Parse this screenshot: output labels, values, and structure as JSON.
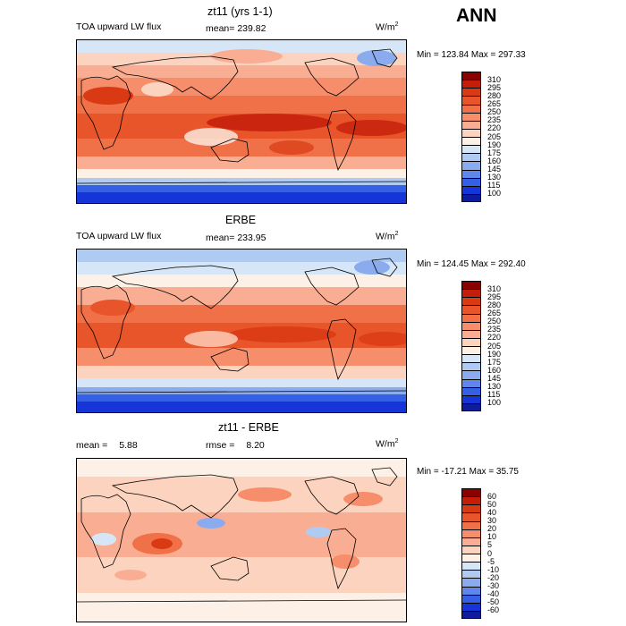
{
  "season": "ANN",
  "unit_base": "W/m",
  "unit_exp": "2",
  "panels": [
    {
      "title": "zt11 (yrs 1-1)",
      "left_label": "TOA upward LW flux",
      "stat_label": "mean=",
      "stat_value": "239.82",
      "extra_label": "",
      "extra_value": "",
      "minmax": "Min = 123.84 Max = 297.33",
      "levels": [
        "310",
        "295",
        "280",
        "265",
        "250",
        "235",
        "220",
        "205",
        "190",
        "175",
        "160",
        "145",
        "130",
        "115",
        "100"
      ],
      "colors": [
        "#8b0000",
        "#c41e0b",
        "#d93a14",
        "#e8552a",
        "#f07048",
        "#f68e6c",
        "#f9ae93",
        "#fcd3bf",
        "#fdf0e6",
        "#d7e6f7",
        "#b0cbf2",
        "#8aabee",
        "#5f86ea",
        "#3560e6",
        "#1535d8",
        "#0d1b9c"
      ]
    },
    {
      "title": "ERBE",
      "left_label": "TOA upward LW flux",
      "stat_label": "mean=",
      "stat_value": "233.95",
      "extra_label": "",
      "extra_value": "",
      "minmax": "Min = 124.45 Max = 292.40",
      "levels": [
        "310",
        "295",
        "280",
        "265",
        "250",
        "235",
        "220",
        "205",
        "190",
        "175",
        "160",
        "145",
        "130",
        "115",
        "100"
      ],
      "colors": [
        "#8b0000",
        "#c41e0b",
        "#d93a14",
        "#e8552a",
        "#f07048",
        "#f68e6c",
        "#f9ae93",
        "#fcd3bf",
        "#fdf0e6",
        "#d7e6f7",
        "#b0cbf2",
        "#8aabee",
        "#5f86ea",
        "#3560e6",
        "#1535d8",
        "#0d1b9c"
      ]
    },
    {
      "title": "zt11 - ERBE",
      "left_label": "mean =",
      "stat_label": "",
      "stat_value": "5.88",
      "extra_label": "rmse =",
      "extra_value": "8.20",
      "minmax": "Min = -17.21 Max =  35.75",
      "levels": [
        "60",
        "50",
        "40",
        "30",
        "20",
        "10",
        "5",
        "0",
        "-5",
        "-10",
        "-20",
        "-30",
        "-40",
        "-50",
        "-60"
      ],
      "colors": [
        "#8b0000",
        "#c41e0b",
        "#d93a14",
        "#e8552a",
        "#f07048",
        "#f68e6c",
        "#f9ae93",
        "#fcd3bf",
        "#fdf0e6",
        "#d7e6f7",
        "#b0cbf2",
        "#8aabee",
        "#5f86ea",
        "#3560e6",
        "#1535d8",
        "#0d1b9c"
      ]
    }
  ]
}
